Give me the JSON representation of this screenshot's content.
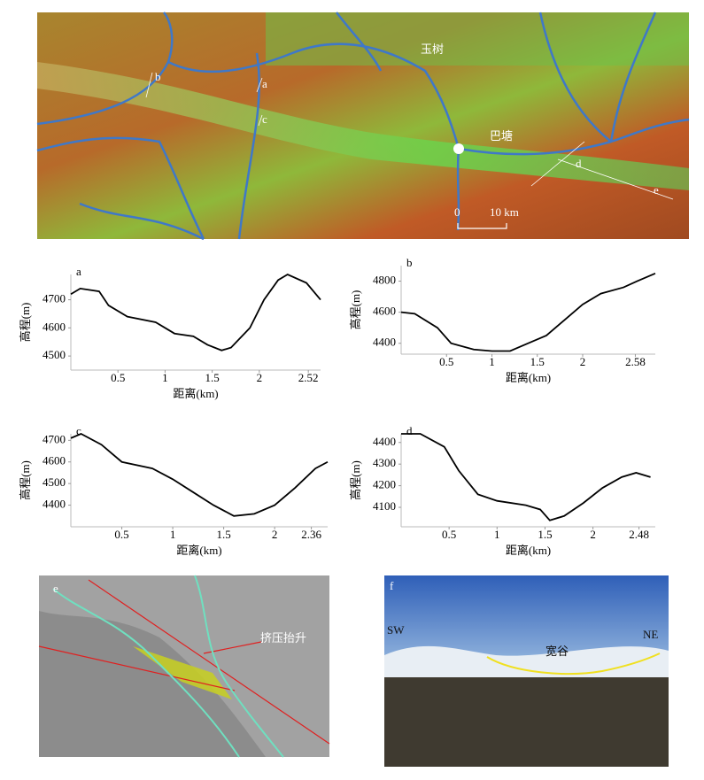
{
  "map": {
    "labels": [
      "b",
      "a",
      "c",
      "玉树",
      "巴塘",
      "d",
      "e"
    ],
    "scale_start": "0",
    "scale_end": "10 km"
  },
  "chart_data": [
    {
      "type": "line",
      "title": "a",
      "xlabel": "距离(km)",
      "ylabel": "高程(m)",
      "x": [
        0,
        0.1,
        0.3,
        0.4,
        0.6,
        0.9,
        1.1,
        1.3,
        1.45,
        1.6,
        1.7,
        1.9,
        2.05,
        2.2,
        2.3,
        2.5,
        2.65
      ],
      "series": [
        {
          "color": "#000000",
          "values": [
            4720,
            4740,
            4730,
            4680,
            4640,
            4620,
            4580,
            4570,
            4540,
            4520,
            4530,
            4600,
            4700,
            4770,
            4790,
            4760,
            4700
          ]
        }
      ],
      "xlim": [
        0,
        2.65
      ],
      "ylim": [
        4450,
        4790
      ],
      "xticks": [
        0.5,
        1.0,
        1.5,
        2.0,
        2.52
      ],
      "yticks": [
        4500,
        4600,
        4700
      ]
    },
    {
      "type": "line",
      "title": "b",
      "xlabel": "距离(km)",
      "ylabel": "高程(m)",
      "x": [
        0,
        0.15,
        0.4,
        0.55,
        0.8,
        1.0,
        1.2,
        1.4,
        1.6,
        1.8,
        2.0,
        2.2,
        2.45,
        2.6,
        2.8
      ],
      "series": [
        {
          "color": "#000000",
          "values": [
            4600,
            4590,
            4500,
            4400,
            4360,
            4350,
            4350,
            4400,
            4450,
            4550,
            4650,
            4720,
            4760,
            4800,
            4850
          ]
        }
      ],
      "xlim": [
        0,
        2.8
      ],
      "ylim": [
        4330,
        4900
      ],
      "xticks": [
        0.5,
        1.0,
        1.5,
        2.0,
        2.58
      ],
      "yticks": [
        4400,
        4600,
        4800
      ]
    },
    {
      "type": "line",
      "title": "c",
      "xlabel": "距离(km)",
      "ylabel": "高程(m)",
      "x": [
        0,
        0.1,
        0.3,
        0.5,
        0.8,
        1.0,
        1.2,
        1.4,
        1.6,
        1.8,
        2.0,
        2.2,
        2.4,
        2.52
      ],
      "series": [
        {
          "color": "#000000",
          "values": [
            4710,
            4730,
            4680,
            4600,
            4570,
            4520,
            4460,
            4400,
            4350,
            4360,
            4400,
            4480,
            4570,
            4600
          ]
        }
      ],
      "xlim": [
        0,
        2.52
      ],
      "ylim": [
        4300,
        4730
      ],
      "xticks": [
        0.5,
        1.0,
        1.5,
        2.0,
        2.36
      ],
      "yticks": [
        4400,
        4500,
        4600,
        4700
      ]
    },
    {
      "type": "line",
      "title": "d",
      "xlabel": "距离(km)",
      "ylabel": "高程(m)",
      "x": [
        0,
        0.2,
        0.45,
        0.6,
        0.8,
        1.0,
        1.3,
        1.45,
        1.55,
        1.7,
        1.9,
        2.1,
        2.3,
        2.45,
        2.6
      ],
      "series": [
        {
          "color": "#000000",
          "values": [
            4440,
            4440,
            4380,
            4270,
            4160,
            4130,
            4110,
            4090,
            4040,
            4060,
            4120,
            4190,
            4240,
            4260,
            4240
          ]
        }
      ],
      "xlim": [
        0,
        2.65
      ],
      "ylim": [
        4010,
        4440
      ],
      "xticks": [
        0.5,
        1.0,
        1.5,
        2.0,
        2.48
      ],
      "yticks": [
        4100,
        4200,
        4300,
        4400
      ]
    }
  ],
  "panel_e": {
    "letter": "e",
    "annotation": "挤压抬升"
  },
  "panel_f": {
    "letter": "f",
    "left": "SW",
    "right": "NE",
    "annotation": "宽谷"
  }
}
